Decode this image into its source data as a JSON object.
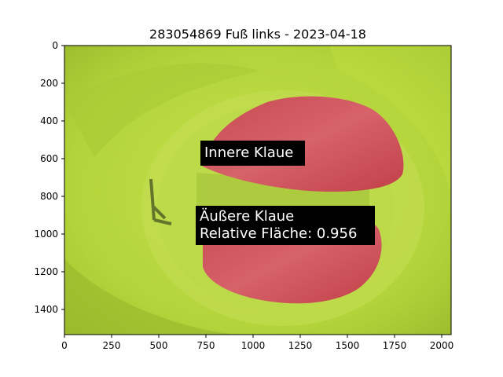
{
  "figure": {
    "title": "283054869 Fuß links - 2023-04-18"
  },
  "image_axes": {
    "x_range": [
      0,
      2048
    ],
    "y_range": [
      0,
      1536
    ],
    "x_ticks": [
      0,
      250,
      500,
      750,
      1000,
      1250,
      1500,
      1750,
      2000
    ],
    "y_ticks": [
      0,
      200,
      400,
      600,
      800,
      1000,
      1200,
      1400
    ]
  },
  "annotations": {
    "inner": {
      "label": "Innere Klaue"
    },
    "outer": {
      "label": "Äußere Klaue",
      "relative_area_text": "Relative Fläche: 0.956"
    }
  },
  "colors": {
    "background_green": "#b5d63a",
    "mask_red": "#d0545a",
    "label_bg": "#000000",
    "label_text": "#ffffff"
  }
}
